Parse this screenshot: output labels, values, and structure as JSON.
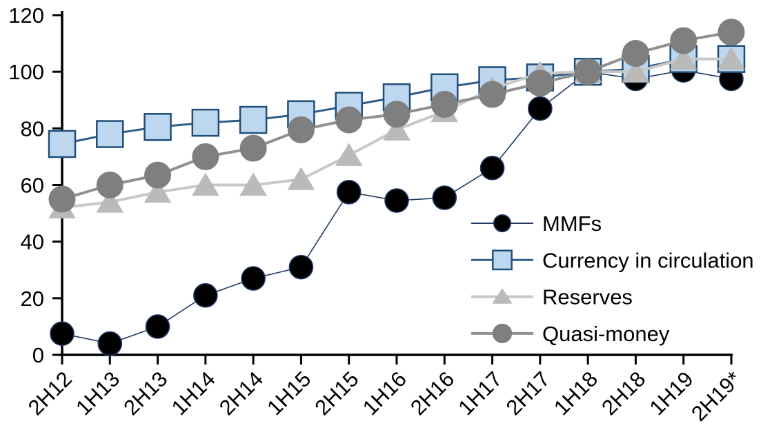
{
  "chart_data": {
    "type": "line",
    "title": "",
    "xlabel": "",
    "ylabel": "",
    "categories": [
      "2H12",
      "1H13",
      "2H13",
      "1H14",
      "2H14",
      "1H15",
      "2H15",
      "1H16",
      "2H16",
      "1H17",
      "2H17",
      "1H18",
      "2H18",
      "1H19",
      "2H19*"
    ],
    "series": [
      {
        "name": "MMFs",
        "marker": "circle",
        "values": [
          7.5,
          4,
          10,
          21,
          27,
          31,
          57.5,
          54.5,
          55.5,
          66,
          87,
          100,
          97.5,
          100.5,
          97.5
        ],
        "line_color": "#1F3864",
        "marker_fill": "#000000",
        "marker_stroke": "#1F3864"
      },
      {
        "name": "Currency in circulation",
        "marker": "square",
        "values": [
          74.5,
          78,
          80.5,
          82,
          83,
          85,
          88,
          91,
          94.5,
          97,
          98,
          100,
          101,
          104.5,
          104.5
        ],
        "line_color": "#2E5B88",
        "marker_fill": "#BDD7EE",
        "marker_stroke": "#1F4E79"
      },
      {
        "name": "Reserves",
        "marker": "triangle",
        "values": [
          52,
          54,
          57.5,
          60,
          60,
          62,
          70.5,
          79.5,
          86,
          94,
          99.5,
          100,
          100,
          104.5,
          104.5
        ],
        "line_color": "#C8C8C8",
        "marker_fill": "#BABABA",
        "marker_stroke": "#BABABA"
      },
      {
        "name": "Quasi-money",
        "marker": "circle",
        "values": [
          55,
          60,
          63.5,
          70,
          73,
          79.5,
          83,
          85,
          88.5,
          92,
          96,
          100,
          106.5,
          111,
          114
        ],
        "line_color": "#909090",
        "marker_fill": "#7F7F7F",
        "marker_stroke": "#7F7F7F"
      }
    ],
    "ylim": [
      0,
      120
    ],
    "yticks": [
      0,
      20,
      40,
      60,
      80,
      100,
      120
    ],
    "grid": false,
    "legend_position": "inside-right",
    "axis_color": "#000000",
    "background": "#FFFFFF"
  }
}
